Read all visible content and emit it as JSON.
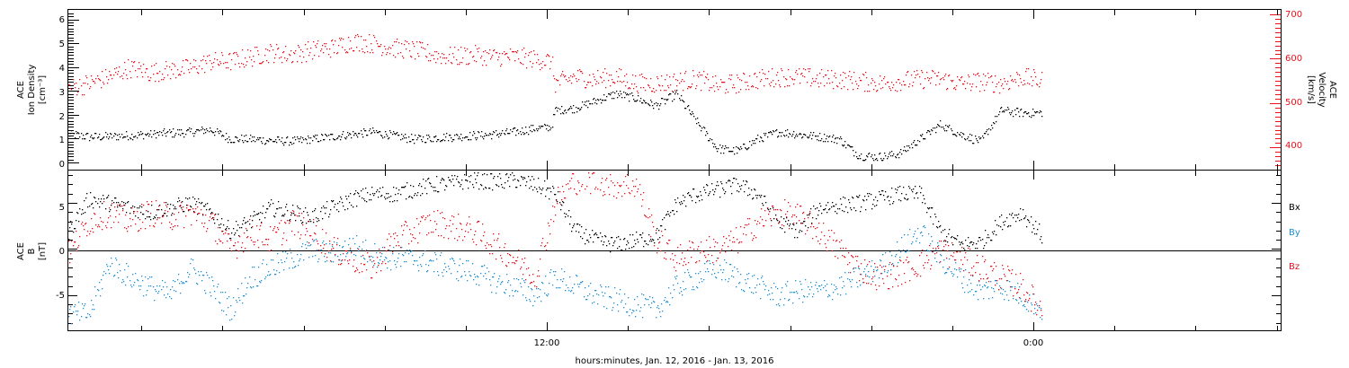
{
  "chart_data": [
    {
      "type": "scatter",
      "panel": "top",
      "ylabel_left": [
        "ACE",
        "Ion Density",
        "[cm⁻³]"
      ],
      "ylabel_right": [
        "ACE",
        "Velocity",
        "[km/s]"
      ],
      "y_left_ticks": [
        "6",
        "5",
        "4",
        "3",
        "2",
        "1",
        "0"
      ],
      "y_right_ticks": [
        "700",
        "600",
        "500",
        "400"
      ],
      "ylim_left": [
        -0.3,
        6.4
      ],
      "ylim_right": [
        350,
        710
      ],
      "series": [
        {
          "color": "#000000",
          "axis": "left",
          "t": [
            0,
            0.5,
            1,
            1.5,
            2,
            2.5,
            3,
            3.5,
            4,
            4.5,
            5,
            5.5,
            6,
            6.5,
            7,
            7.5,
            8,
            8.5,
            9,
            9.5,
            10,
            10.5,
            11,
            11.5,
            11.9,
            12.0,
            12.5,
            13,
            13.5,
            14,
            14.5,
            15,
            15.5,
            16,
            16.5,
            17,
            17.5,
            18,
            18.5,
            19,
            19.5,
            20,
            20.5,
            21,
            21.5,
            22,
            22.5,
            23,
            23.5,
            24
          ],
          "values": [
            1.2,
            1.1,
            1.1,
            1.15,
            1.2,
            1.25,
            1.3,
            1.4,
            1.0,
            1.0,
            0.95,
            0.9,
            1.0,
            1.1,
            1.2,
            1.3,
            1.15,
            1.0,
            1.05,
            1.1,
            1.15,
            1.2,
            1.3,
            1.45,
            1.5,
            2.2,
            2.3,
            2.6,
            2.9,
            2.7,
            2.4,
            2.9,
            1.7,
            0.6,
            0.5,
            1.0,
            1.3,
            1.2,
            1.1,
            1.0,
            0.3,
            0.25,
            0.4,
            1.0,
            1.6,
            1.2,
            0.9,
            2.2,
            2.1,
            2.1
          ]
        },
        {
          "color": "#e8121d",
          "axis": "right",
          "t": [
            0,
            0.5,
            1,
            1.5,
            2,
            2.5,
            3,
            3.5,
            4,
            4.5,
            5,
            5.5,
            6,
            6.5,
            7,
            7.5,
            8,
            8.5,
            9,
            9.5,
            10,
            10.5,
            11,
            11.5,
            11.9,
            12.0,
            12.5,
            13,
            13.5,
            14,
            14.5,
            15,
            15.5,
            16,
            16.5,
            17,
            17.5,
            18,
            18.5,
            19,
            19.5,
            20,
            20.5,
            21,
            21.5,
            22,
            22.5,
            23,
            23.5,
            24
          ],
          "values": [
            535,
            545,
            560,
            580,
            570,
            575,
            580,
            595,
            595,
            605,
            615,
            610,
            620,
            625,
            640,
            635,
            625,
            620,
            610,
            605,
            610,
            605,
            605,
            600,
            595,
            545,
            560,
            555,
            560,
            545,
            545,
            550,
            555,
            540,
            545,
            555,
            560,
            560,
            555,
            555,
            550,
            545,
            550,
            555,
            555,
            545,
            550,
            545,
            560,
            550
          ]
        }
      ]
    },
    {
      "type": "scatter",
      "panel": "bottom",
      "ylabel": [
        "ACE",
        "B",
        "[nT]"
      ],
      "y_ticks": [
        "5",
        "0",
        "-5"
      ],
      "ylim": [
        -8.8,
        8.5
      ],
      "xlabel": "hours:minutes, Jan. 12, 2016 - Jan. 13, 2016",
      "x_ticks": [
        "12:00",
        "0:00"
      ],
      "legend": [
        "Bx",
        "By",
        "Bz"
      ],
      "legend_placement": "right",
      "series": [
        {
          "name": "Bx",
          "color": "#000000",
          "t": [
            0,
            0.5,
            1,
            1.5,
            2,
            2.5,
            3,
            3.5,
            4,
            4.5,
            5,
            5.5,
            6,
            6.5,
            7,
            7.5,
            8,
            8.5,
            9,
            9.5,
            10,
            10.5,
            11,
            11.5,
            12,
            12.5,
            13,
            13.5,
            14,
            14.5,
            15,
            15.5,
            16,
            16.5,
            17,
            17.5,
            18,
            18.5,
            19,
            19.5,
            20,
            20.5,
            21,
            21.5,
            22,
            22.5,
            23,
            23.5,
            24
          ],
          "values": [
            2.0,
            5.5,
            5.0,
            4.5,
            4.0,
            4.5,
            5.0,
            4.0,
            2.0,
            3.0,
            4.5,
            4.0,
            3.5,
            4.5,
            5.5,
            6.0,
            6.0,
            6.5,
            7.0,
            7.2,
            7.5,
            7.3,
            7.5,
            7.0,
            6.0,
            2.0,
            1.0,
            0.5,
            1.0,
            1.5,
            5.0,
            6.0,
            6.5,
            7.0,
            6.0,
            3.0,
            2.0,
            4.5,
            4.8,
            5.0,
            5.5,
            6.0,
            6.0,
            2.0,
            0.5,
            0.8,
            3.0,
            4.0,
            1.5
          ]
        },
        {
          "name": "By",
          "color": "#1b8fd4",
          "t": [
            0,
            0.5,
            1,
            1.5,
            2,
            2.5,
            3,
            3.5,
            4,
            4.5,
            5,
            5.5,
            6,
            6.5,
            7,
            7.5,
            8,
            8.5,
            9,
            9.5,
            10,
            10.5,
            11,
            11.5,
            12,
            12.5,
            13,
            13.5,
            14,
            14.5,
            15,
            15.5,
            16,
            16.5,
            17,
            17.5,
            18,
            18.5,
            19,
            19.5,
            20,
            20.5,
            21,
            21.5,
            22,
            22.5,
            23,
            23.5,
            24
          ],
          "values": [
            -7.0,
            -7.0,
            -1.5,
            -3.0,
            -4.0,
            -5.0,
            -2.0,
            -4.0,
            -6.5,
            -3.0,
            -2.0,
            -1.0,
            0.0,
            -0.5,
            0.5,
            -0.5,
            -1.0,
            -1.0,
            -1.5,
            -2.0,
            -2.5,
            -3.5,
            -4.0,
            -5.0,
            -3.0,
            -4.0,
            -5.0,
            -5.5,
            -6.0,
            -6.5,
            -4.0,
            -3.0,
            -2.0,
            -3.0,
            -4.0,
            -5.0,
            -4.5,
            -4.5,
            -4.0,
            -3.0,
            -2.0,
            0.0,
            2.0,
            -1.0,
            -3.0,
            -4.5,
            -4.0,
            -5.0,
            -6.5
          ]
        },
        {
          "name": "Bz",
          "color": "#e8121d",
          "t": [
            0,
            0.5,
            1,
            1.5,
            2,
            2.5,
            3,
            3.5,
            4,
            4.5,
            5,
            5.5,
            6,
            6.5,
            7,
            7.5,
            8,
            8.5,
            9,
            9.5,
            10,
            10.5,
            11,
            11.5,
            12,
            12.5,
            13,
            13.5,
            14,
            14.5,
            15,
            15.5,
            16,
            16.5,
            17,
            17.5,
            18,
            18.5,
            19,
            19.5,
            20,
            20.5,
            21,
            21.5,
            22,
            22.5,
            23,
            23.5,
            24
          ],
          "values": [
            -0.5,
            3.0,
            4.0,
            3.0,
            4.0,
            3.5,
            4.0,
            3.0,
            0.0,
            2.0,
            1.0,
            3.0,
            2.0,
            0.0,
            -1.0,
            -2.0,
            1.0,
            2.0,
            3.0,
            2.5,
            2.0,
            0.5,
            -1.0,
            -3.0,
            5.0,
            7.5,
            7.5,
            7.0,
            7.0,
            1.0,
            -1.0,
            0.0,
            0.0,
            1.0,
            3.0,
            4.0,
            3.5,
            2.0,
            0.0,
            -2.0,
            -3.0,
            -2.5,
            -1.5,
            0.0,
            -1.0,
            -2.0,
            -3.0,
            -4.0,
            -6.5
          ]
        }
      ]
    }
  ]
}
